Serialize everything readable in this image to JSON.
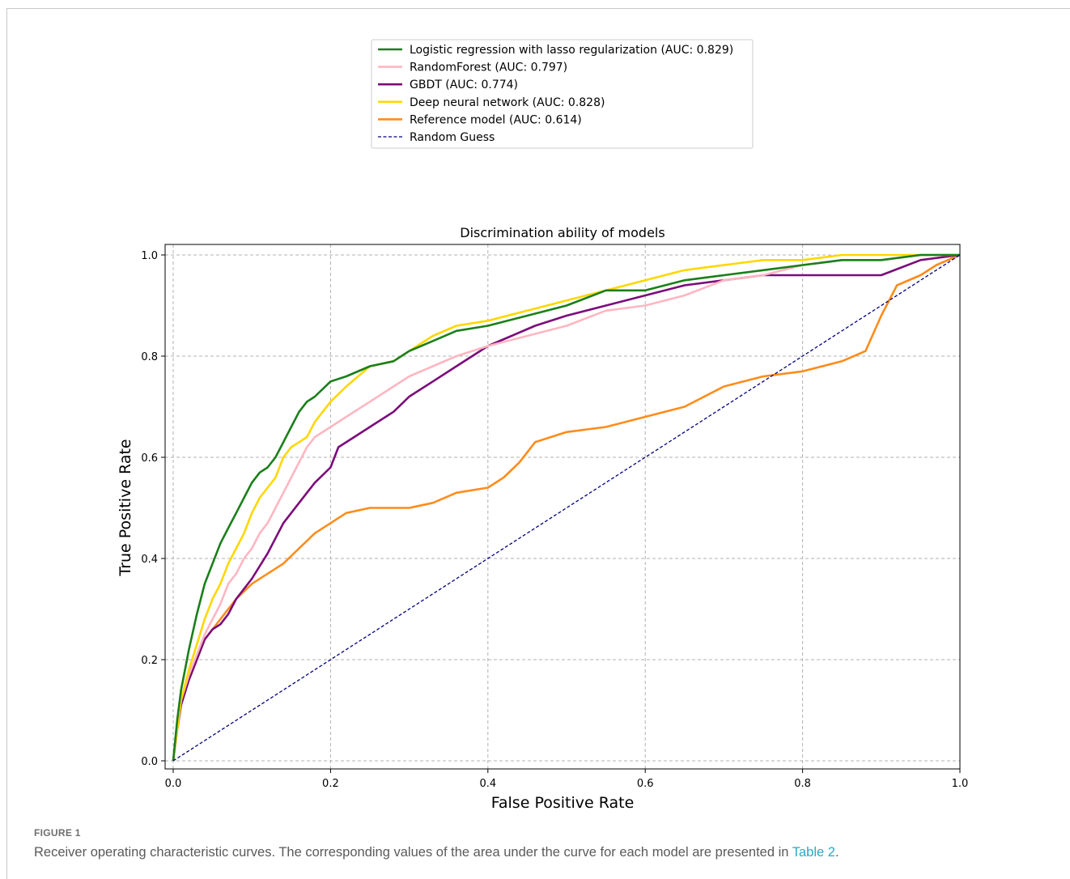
{
  "chart_data": {
    "type": "line",
    "title": "Discrimination ability of models",
    "xlabel": "False Positive Rate",
    "ylabel": "True Positive Rate",
    "xlim": [
      0,
      1
    ],
    "ylim": [
      0,
      1
    ],
    "xticks": [
      "0.0",
      "0.2",
      "0.4",
      "0.6",
      "0.8",
      "1.0"
    ],
    "yticks": [
      "0.0",
      "0.2",
      "0.4",
      "0.6",
      "0.8",
      "1.0"
    ],
    "grid": true,
    "legend_position": "above plot, center",
    "series": [
      {
        "name": "Logistic regression with lasso regularization (AUC: 0.829)",
        "color": "#1a7f1a",
        "style": "solid",
        "x": [
          0,
          0.005,
          0.01,
          0.015,
          0.02,
          0.03,
          0.04,
          0.05,
          0.06,
          0.07,
          0.08,
          0.09,
          0.1,
          0.11,
          0.12,
          0.13,
          0.14,
          0.15,
          0.16,
          0.17,
          0.18,
          0.2,
          0.22,
          0.25,
          0.28,
          0.3,
          0.33,
          0.36,
          0.4,
          0.45,
          0.5,
          0.55,
          0.6,
          0.65,
          0.7,
          0.75,
          0.8,
          0.85,
          0.9,
          0.95,
          1.0
        ],
        "y": [
          0,
          0.08,
          0.14,
          0.18,
          0.22,
          0.29,
          0.35,
          0.39,
          0.43,
          0.46,
          0.49,
          0.52,
          0.55,
          0.57,
          0.58,
          0.6,
          0.63,
          0.66,
          0.69,
          0.71,
          0.72,
          0.75,
          0.76,
          0.78,
          0.79,
          0.81,
          0.83,
          0.85,
          0.86,
          0.88,
          0.9,
          0.93,
          0.93,
          0.95,
          0.96,
          0.97,
          0.98,
          0.99,
          0.99,
          1.0,
          1.0
        ]
      },
      {
        "name": "RandomForest (AUC: 0.797)",
        "color": "#ffb6c1",
        "style": "solid",
        "x": [
          0,
          0.005,
          0.01,
          0.02,
          0.03,
          0.04,
          0.05,
          0.06,
          0.07,
          0.08,
          0.09,
          0.1,
          0.11,
          0.12,
          0.13,
          0.14,
          0.15,
          0.16,
          0.17,
          0.18,
          0.2,
          0.22,
          0.25,
          0.28,
          0.3,
          0.33,
          0.36,
          0.4,
          0.45,
          0.5,
          0.55,
          0.6,
          0.65,
          0.7,
          0.75,
          0.8,
          0.85,
          0.9,
          0.95,
          1.0
        ],
        "y": [
          0,
          0.07,
          0.12,
          0.17,
          0.21,
          0.25,
          0.28,
          0.31,
          0.35,
          0.37,
          0.4,
          0.42,
          0.45,
          0.47,
          0.5,
          0.53,
          0.56,
          0.59,
          0.62,
          0.64,
          0.66,
          0.68,
          0.71,
          0.74,
          0.76,
          0.78,
          0.8,
          0.82,
          0.84,
          0.86,
          0.89,
          0.9,
          0.92,
          0.95,
          0.96,
          0.98,
          0.99,
          0.99,
          1.0,
          1.0
        ]
      },
      {
        "name": "GBDT (AUC: 0.774)",
        "color": "#7b0b7b",
        "style": "solid",
        "x": [
          0,
          0.005,
          0.01,
          0.02,
          0.03,
          0.04,
          0.05,
          0.06,
          0.07,
          0.08,
          0.09,
          0.1,
          0.12,
          0.14,
          0.16,
          0.18,
          0.2,
          0.21,
          0.23,
          0.25,
          0.28,
          0.3,
          0.33,
          0.36,
          0.38,
          0.4,
          0.43,
          0.46,
          0.5,
          0.55,
          0.6,
          0.65,
          0.7,
          0.75,
          0.8,
          0.85,
          0.9,
          0.95,
          1.0
        ],
        "y": [
          0,
          0.06,
          0.11,
          0.16,
          0.2,
          0.24,
          0.26,
          0.27,
          0.29,
          0.32,
          0.34,
          0.36,
          0.41,
          0.47,
          0.51,
          0.55,
          0.58,
          0.62,
          0.64,
          0.66,
          0.69,
          0.72,
          0.75,
          0.78,
          0.8,
          0.82,
          0.84,
          0.86,
          0.88,
          0.9,
          0.92,
          0.94,
          0.95,
          0.96,
          0.96,
          0.96,
          0.96,
          0.99,
          1.0
        ]
      },
      {
        "name": "Deep neural network (AUC: 0.828)",
        "color": "#ffd700",
        "style": "solid",
        "x": [
          0,
          0.005,
          0.01,
          0.02,
          0.03,
          0.04,
          0.05,
          0.06,
          0.07,
          0.08,
          0.09,
          0.1,
          0.11,
          0.12,
          0.13,
          0.14,
          0.15,
          0.16,
          0.17,
          0.18,
          0.2,
          0.22,
          0.25,
          0.28,
          0.3,
          0.33,
          0.36,
          0.4,
          0.45,
          0.5,
          0.55,
          0.6,
          0.65,
          0.7,
          0.75,
          0.8,
          0.85,
          0.9,
          0.95,
          1.0
        ],
        "y": [
          0,
          0.06,
          0.12,
          0.18,
          0.23,
          0.28,
          0.32,
          0.35,
          0.39,
          0.42,
          0.45,
          0.49,
          0.52,
          0.54,
          0.56,
          0.6,
          0.62,
          0.63,
          0.64,
          0.67,
          0.71,
          0.74,
          0.78,
          0.79,
          0.81,
          0.84,
          0.86,
          0.87,
          0.89,
          0.91,
          0.93,
          0.95,
          0.97,
          0.98,
          0.99,
          0.99,
          1.0,
          1.0,
          1.0,
          1.0
        ]
      },
      {
        "name": "Reference model (AUC: 0.614)",
        "color": "#ff8c1a",
        "style": "solid",
        "x": [
          0,
          0.005,
          0.01,
          0.02,
          0.03,
          0.04,
          0.05,
          0.06,
          0.07,
          0.08,
          0.1,
          0.12,
          0.14,
          0.16,
          0.18,
          0.2,
          0.22,
          0.25,
          0.3,
          0.33,
          0.36,
          0.4,
          0.42,
          0.44,
          0.46,
          0.5,
          0.55,
          0.6,
          0.65,
          0.7,
          0.75,
          0.8,
          0.85,
          0.88,
          0.9,
          0.92,
          0.95,
          0.97,
          1.0
        ],
        "y": [
          0,
          0.07,
          0.12,
          0.16,
          0.2,
          0.24,
          0.26,
          0.28,
          0.3,
          0.32,
          0.35,
          0.37,
          0.39,
          0.42,
          0.45,
          0.47,
          0.49,
          0.5,
          0.5,
          0.51,
          0.53,
          0.54,
          0.56,
          0.59,
          0.63,
          0.65,
          0.66,
          0.68,
          0.7,
          0.74,
          0.76,
          0.77,
          0.79,
          0.81,
          0.88,
          0.94,
          0.96,
          0.98,
          1.0
        ]
      },
      {
        "name": "Random Guess",
        "color": "#000080",
        "style": "dashed",
        "x": [
          0,
          1
        ],
        "y": [
          0,
          1
        ]
      }
    ]
  },
  "caption": {
    "label": "FIGURE 1",
    "text": "Receiver operating characteristic curves. The corresponding values of the area under the curve for each model are presented in ",
    "link": "Table 2",
    "end": "."
  }
}
